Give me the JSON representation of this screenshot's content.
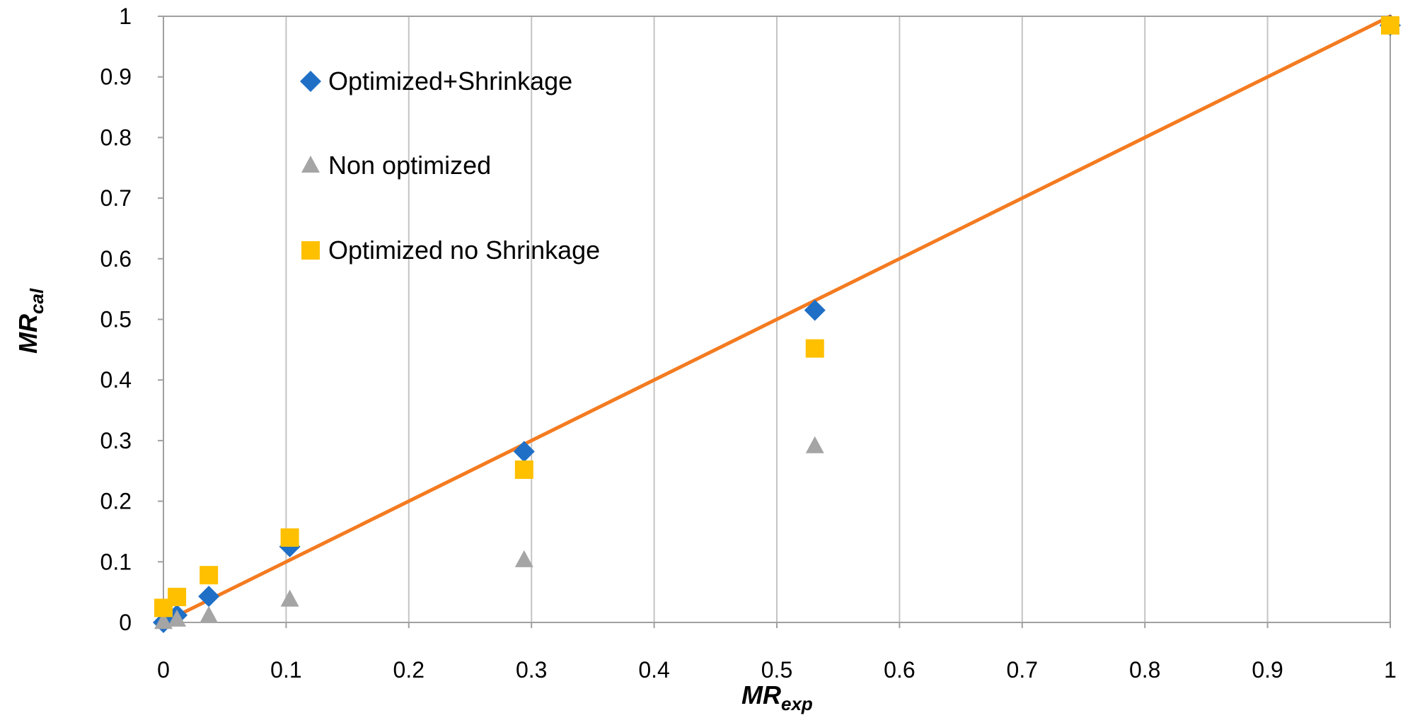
{
  "chart_data": {
    "type": "scatter",
    "title": "",
    "xlabel": {
      "main": "MR",
      "sub": "exp"
    },
    "ylabel": {
      "main": "MR",
      "sub": "cal"
    },
    "xlim": [
      0,
      1
    ],
    "ylim": [
      0,
      1
    ],
    "x_ticks": [
      "0",
      "0.1",
      "0.2",
      "0.3",
      "0.4",
      "0.5",
      "0.6",
      "0.7",
      "0.8",
      "0.9",
      "1"
    ],
    "y_ticks": [
      "0",
      "0.1",
      "0.2",
      "0.3",
      "0.4",
      "0.5",
      "0.6",
      "0.7",
      "0.8",
      "0.9",
      "1"
    ],
    "grid": true,
    "legend_position": "upper-left",
    "series": [
      {
        "name": "Optimized+Shrinkage",
        "marker": "diamond",
        "color": "#1F6FC6",
        "x": [
          0,
          0.011,
          0.037,
          0.103,
          0.294,
          0.531,
          1
        ],
        "y": [
          0,
          0.012,
          0.043,
          0.125,
          0.282,
          0.515,
          0.985
        ]
      },
      {
        "name": "Non optimized",
        "marker": "triangle",
        "color": "#A5A5A5",
        "x": [
          0,
          0.011,
          0.037,
          0.103,
          0.294,
          0.531,
          1
        ],
        "y": [
          0.002,
          0.006,
          0.012,
          0.039,
          0.104,
          0.292,
          0.985
        ]
      },
      {
        "name": "Optimized no Shrinkage",
        "marker": "square",
        "color": "#FFC000",
        "x": [
          0,
          0.011,
          0.037,
          0.103,
          0.294,
          0.531,
          1
        ],
        "y": [
          0.024,
          0.042,
          0.078,
          0.14,
          0.252,
          0.452,
          0.985
        ]
      }
    ],
    "reference_line": {
      "x": [
        0,
        1
      ],
      "y": [
        0,
        1
      ],
      "color": "#F47B20"
    }
  }
}
